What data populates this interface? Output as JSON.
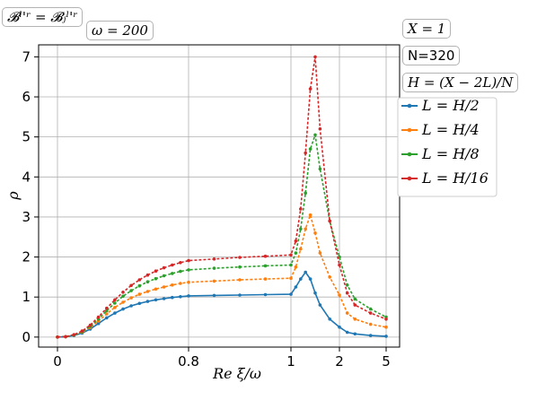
{
  "annotations": {
    "top_left_label": "𝓑ˡ'ʳ = 𝓑ⱼˡ'ʳ",
    "omega_label": "ω = 200",
    "x_label": "X = 1",
    "n_label": "N=320",
    "h_label": "H = (X − 2L)/N"
  },
  "chart_data": {
    "type": "scatter",
    "title": "",
    "xlabel": "Re ξ/ω",
    "ylabel": "ρ",
    "x_ticks": [
      "0",
      "0.8",
      "1",
      "2",
      "5"
    ],
    "y_ticks": [
      "0",
      "1",
      "2",
      "3",
      "4",
      "5",
      "6",
      "7"
    ],
    "ylim": [
      -0.25,
      7.3
    ],
    "grid": true,
    "legend_position": "right",
    "colors": {
      "L = H/2": "#1f77b4",
      "L = H/4": "#ff7f0e",
      "L = H/8": "#2ca02c",
      "L = H/16": "#d62728"
    },
    "legend": [
      "L = H/2",
      "L = H/4",
      "L = H/8",
      "L = H/16"
    ],
    "x": [
      "0",
      "0.05",
      "0.1",
      "0.15",
      "0.2",
      "0.25",
      "0.3",
      "0.35",
      "0.4",
      "0.45",
      "0.5",
      "0.55",
      "0.6",
      "0.65",
      "0.7",
      "0.75",
      "0.8",
      "0.85",
      "0.9",
      "0.95",
      "1",
      "1.1",
      "1.2",
      "1.3",
      "1.4",
      "1.5",
      "1.6",
      "1.8",
      "2",
      "2.5",
      "3",
      "4",
      "5"
    ],
    "series": [
      {
        "name": "L = H/2",
        "color": "#1f77b4",
        "values": [
          0,
          0.01,
          0.04,
          0.1,
          0.2,
          0.34,
          0.48,
          0.6,
          0.7,
          0.78,
          0.84,
          0.89,
          0.93,
          0.96,
          0.99,
          1.01,
          1.03,
          1.04,
          1.05,
          1.06,
          1.07,
          1.25,
          1.45,
          1.62,
          1.45,
          1.1,
          0.8,
          0.45,
          0.25,
          0.12,
          0.08,
          0.04,
          0.02
        ]
      },
      {
        "name": "L = H/4",
        "color": "#ff7f0e",
        "values": [
          0,
          0.01,
          0.05,
          0.12,
          0.24,
          0.4,
          0.58,
          0.74,
          0.87,
          0.98,
          1.07,
          1.14,
          1.2,
          1.25,
          1.3,
          1.34,
          1.37,
          1.4,
          1.43,
          1.45,
          1.47,
          1.75,
          2.2,
          2.7,
          3.05,
          2.6,
          2.1,
          1.5,
          1.05,
          0.6,
          0.45,
          0.32,
          0.25
        ]
      },
      {
        "name": "L = H/8",
        "color": "#2ca02c",
        "values": [
          0,
          0.01,
          0.05,
          0.13,
          0.27,
          0.45,
          0.66,
          0.85,
          1.02,
          1.16,
          1.28,
          1.38,
          1.46,
          1.53,
          1.59,
          1.64,
          1.68,
          1.72,
          1.75,
          1.78,
          1.8,
          2.1,
          2.7,
          3.6,
          4.7,
          5.05,
          4.2,
          2.9,
          2.0,
          1.3,
          0.95,
          0.7,
          0.5
        ]
      },
      {
        "name": "L = H/16",
        "color": "#d62728",
        "values": [
          0,
          0.01,
          0.06,
          0.15,
          0.3,
          0.5,
          0.72,
          0.93,
          1.12,
          1.29,
          1.43,
          1.55,
          1.65,
          1.73,
          1.8,
          1.86,
          1.91,
          1.95,
          1.99,
          2.02,
          2.05,
          2.4,
          3.2,
          4.6,
          6.2,
          7.0,
          5.2,
          2.9,
          1.8,
          1.1,
          0.8,
          0.6,
          0.45
        ]
      }
    ]
  }
}
